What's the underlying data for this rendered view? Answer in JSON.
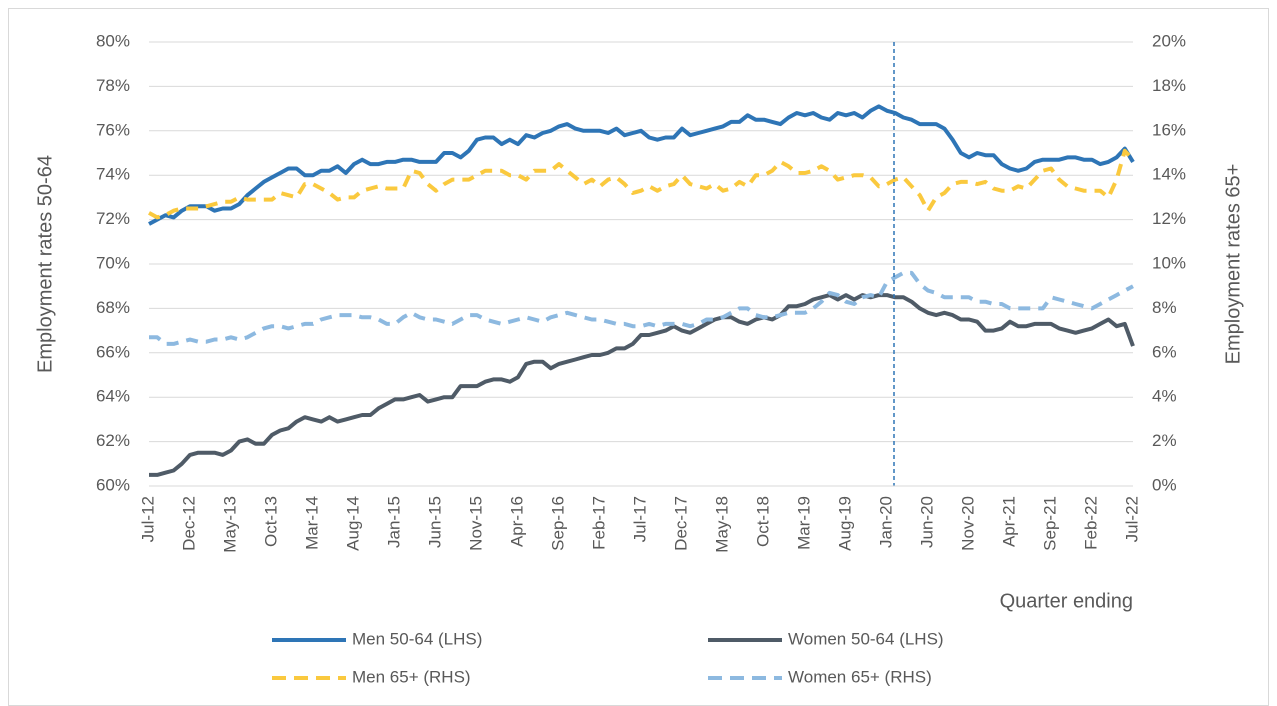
{
  "chart_data": {
    "type": "line",
    "ylabel": "Employment rates 50-64",
    "y2label": "Employment rates 65+",
    "xlabel": "Quarter ending",
    "categories": [
      "Jul-12",
      null,
      null,
      null,
      null,
      "Dec-12",
      null,
      null,
      null,
      null,
      "May-13",
      null,
      null,
      null,
      null,
      "Oct-13",
      null,
      null,
      null,
      null,
      "Mar-14",
      null,
      null,
      null,
      null,
      "Aug-14",
      null,
      null,
      null,
      null,
      "Jan-15",
      null,
      null,
      null,
      null,
      "Jun-15",
      null,
      null,
      null,
      null,
      "Nov-15",
      null,
      null,
      null,
      null,
      "Apr-16",
      null,
      null,
      null,
      null,
      "Sep-16",
      null,
      null,
      null,
      null,
      "Feb-17",
      null,
      null,
      null,
      null,
      "Jul-17",
      null,
      null,
      null,
      null,
      "Dec-17",
      null,
      null,
      null,
      null,
      "May-18",
      null,
      null,
      null,
      null,
      "Oct-18",
      null,
      null,
      null,
      null,
      "Mar-19",
      null,
      null,
      null,
      null,
      "Aug-19",
      null,
      null,
      null,
      null,
      "Jan-20",
      null,
      null,
      null,
      null,
      "Jun-20",
      null,
      null,
      null,
      null,
      "Nov-20",
      null,
      null,
      null,
      null,
      "Apr-21",
      null,
      null,
      null,
      null,
      "Sep-21",
      null,
      null,
      null,
      null,
      "Feb-22",
      null,
      null,
      null,
      null,
      "Jul-22"
    ],
    "ylim": [
      60,
      80
    ],
    "yticks": [
      {
        "value": 60,
        "label": "60%"
      },
      {
        "value": 62,
        "label": "62%"
      },
      {
        "value": 64,
        "label": "64%"
      },
      {
        "value": 66,
        "label": "66%"
      },
      {
        "value": 68,
        "label": "68%"
      },
      {
        "value": 70,
        "label": "70%"
      },
      {
        "value": 72,
        "label": "72%"
      },
      {
        "value": 74,
        "label": "74%"
      },
      {
        "value": 76,
        "label": "76%"
      },
      {
        "value": 78,
        "label": "78%"
      },
      {
        "value": 80,
        "label": "80%"
      }
    ],
    "y2lim": [
      0,
      20
    ],
    "y2ticks": [
      {
        "value": 0,
        "label": "0%"
      },
      {
        "value": 2,
        "label": "2%"
      },
      {
        "value": 4,
        "label": "4%"
      },
      {
        "value": 6,
        "label": "6%"
      },
      {
        "value": 8,
        "label": "8%"
      },
      {
        "value": 10,
        "label": "10%"
      },
      {
        "value": 12,
        "label": "12%"
      },
      {
        "value": 14,
        "label": "14%"
      },
      {
        "value": 16,
        "label": "16%"
      },
      {
        "value": 18,
        "label": "18%"
      },
      {
        "value": 20,
        "label": "20%"
      }
    ],
    "grid": true,
    "series": [
      {
        "name": "Men 50-64 (LHS)",
        "color": "#2e75b6",
        "dashed": false,
        "axis": "y",
        "values": [
          71.8,
          72.0,
          72.2,
          72.1,
          72.4,
          72.6,
          72.6,
          72.6,
          72.4,
          72.5,
          72.5,
          72.7,
          73.1,
          73.4,
          73.7,
          73.9,
          74.1,
          74.3,
          74.3,
          74.0,
          74.0,
          74.2,
          74.2,
          74.4,
          74.1,
          74.5,
          74.7,
          74.5,
          74.5,
          74.6,
          74.6,
          74.7,
          74.7,
          74.6,
          74.6,
          74.6,
          75.0,
          75.0,
          74.8,
          75.1,
          75.6,
          75.7,
          75.7,
          75.4,
          75.6,
          75.4,
          75.8,
          75.7,
          75.9,
          76.0,
          76.2,
          76.3,
          76.1,
          76.0,
          76.0,
          76.0,
          75.9,
          76.1,
          75.8,
          75.9,
          76.0,
          75.7,
          75.6,
          75.7,
          75.7,
          76.1,
          75.8,
          75.9,
          76.0,
          76.1,
          76.2,
          76.4,
          76.4,
          76.7,
          76.5,
          76.5,
          76.4,
          76.3,
          76.6,
          76.8,
          76.7,
          76.8,
          76.6,
          76.5,
          76.8,
          76.7,
          76.8,
          76.6,
          76.9,
          77.1,
          76.9,
          76.8,
          76.6,
          76.5,
          76.3,
          76.3,
          76.3,
          76.1,
          75.6,
          75.0,
          74.8,
          75.0,
          74.9,
          74.9,
          74.5,
          74.3,
          74.2,
          74.3,
          74.6,
          74.7,
          74.7,
          74.7,
          74.8,
          74.8,
          74.7,
          74.7,
          74.5,
          74.6,
          74.8,
          75.2,
          74.6
        ]
      },
      {
        "name": "Women 50-64 (LHS)",
        "color": "#4f5b67",
        "dashed": false,
        "axis": "y",
        "values": [
          60.5,
          60.5,
          60.6,
          60.7,
          61.0,
          61.4,
          61.5,
          61.5,
          61.5,
          61.4,
          61.6,
          62.0,
          62.1,
          61.9,
          61.9,
          62.3,
          62.5,
          62.6,
          62.9,
          63.1,
          63.0,
          62.9,
          63.1,
          62.9,
          63.0,
          63.1,
          63.2,
          63.2,
          63.5,
          63.7,
          63.9,
          63.9,
          64.0,
          64.1,
          63.8,
          63.9,
          64.0,
          64.0,
          64.5,
          64.5,
          64.5,
          64.7,
          64.8,
          64.8,
          64.7,
          64.9,
          65.5,
          65.6,
          65.6,
          65.3,
          65.5,
          65.6,
          65.7,
          65.8,
          65.9,
          65.9,
          66.0,
          66.2,
          66.2,
          66.4,
          66.8,
          66.8,
          66.9,
          67.0,
          67.2,
          67.0,
          66.9,
          67.1,
          67.3,
          67.5,
          67.6,
          67.6,
          67.4,
          67.3,
          67.5,
          67.6,
          67.5,
          67.7,
          68.1,
          68.1,
          68.2,
          68.4,
          68.5,
          68.6,
          68.4,
          68.6,
          68.4,
          68.6,
          68.5,
          68.6,
          68.6,
          68.5,
          68.5,
          68.3,
          68.0,
          67.8,
          67.7,
          67.8,
          67.7,
          67.5,
          67.5,
          67.4,
          67.0,
          67.0,
          67.1,
          67.4,
          67.2,
          67.2,
          67.3,
          67.3,
          67.3,
          67.1,
          67.0,
          66.9,
          67.0,
          67.1,
          67.3,
          67.5,
          67.2,
          67.3,
          66.3
        ]
      },
      {
        "name": "Men 65+ (RHS)",
        "color": "#fac93e",
        "dashed": true,
        "axis": "y2",
        "values": [
          12.3,
          12.1,
          12.2,
          12.4,
          12.5,
          12.5,
          12.5,
          12.6,
          12.7,
          12.8,
          12.8,
          13.0,
          12.9,
          12.9,
          12.9,
          12.9,
          13.2,
          13.1,
          13.0,
          13.6,
          13.6,
          13.4,
          13.2,
          12.9,
          13.0,
          13.0,
          13.3,
          13.4,
          13.5,
          13.4,
          13.4,
          13.4,
          14.2,
          14.1,
          13.6,
          13.3,
          13.6,
          13.8,
          13.8,
          13.8,
          14.0,
          14.2,
          14.2,
          14.2,
          14.0,
          14.0,
          13.8,
          14.2,
          14.2,
          14.2,
          14.5,
          14.2,
          13.9,
          13.6,
          13.8,
          13.5,
          13.8,
          13.9,
          13.6,
          13.2,
          13.3,
          13.5,
          13.3,
          13.5,
          13.6,
          14.0,
          13.6,
          13.5,
          13.4,
          13.6,
          13.3,
          13.4,
          13.7,
          13.5,
          14.0,
          14.0,
          14.2,
          14.6,
          14.4,
          14.1,
          14.1,
          14.2,
          14.4,
          14.2,
          13.8,
          13.9,
          14.0,
          14.0,
          13.9,
          13.5,
          13.6,
          13.8,
          13.9,
          13.5,
          13.1,
          12.4,
          13.0,
          13.2,
          13.6,
          13.7,
          13.7,
          13.6,
          13.7,
          13.4,
          13.3,
          13.3,
          13.5,
          13.4,
          13.8,
          14.2,
          14.3,
          13.8,
          13.5,
          13.4,
          13.3,
          13.3,
          13.3,
          13.0,
          13.8,
          15.1,
          14.7
        ]
      },
      {
        "name": "Women 65+ (RHS)",
        "color": "#8db9e0",
        "dashed": true,
        "axis": "y2",
        "values": [
          6.7,
          6.7,
          6.4,
          6.4,
          6.5,
          6.6,
          6.5,
          6.5,
          6.6,
          6.6,
          6.7,
          6.6,
          6.7,
          6.9,
          7.1,
          7.2,
          7.2,
          7.1,
          7.2,
          7.3,
          7.3,
          7.5,
          7.6,
          7.7,
          7.7,
          7.7,
          7.6,
          7.6,
          7.5,
          7.3,
          7.3,
          7.6,
          7.8,
          7.6,
          7.5,
          7.5,
          7.4,
          7.3,
          7.5,
          7.7,
          7.7,
          7.5,
          7.4,
          7.3,
          7.4,
          7.5,
          7.6,
          7.5,
          7.4,
          7.6,
          7.7,
          7.8,
          7.7,
          7.6,
          7.5,
          7.5,
          7.4,
          7.3,
          7.3,
          7.2,
          7.2,
          7.3,
          7.2,
          7.3,
          7.3,
          7.3,
          7.2,
          7.3,
          7.5,
          7.5,
          7.6,
          7.8,
          8.0,
          8.0,
          7.7,
          7.6,
          7.6,
          7.7,
          7.8,
          7.8,
          7.8,
          8.0,
          8.3,
          8.7,
          8.6,
          8.3,
          8.2,
          8.5,
          8.6,
          8.5,
          9.2,
          9.4,
          9.6,
          9.6,
          9.1,
          8.8,
          8.7,
          8.5,
          8.5,
          8.5,
          8.5,
          8.3,
          8.3,
          8.2,
          8.2,
          8.0,
          8.0,
          8.0,
          8.0,
          8.0,
          8.5,
          8.4,
          8.3,
          8.2,
          8.1,
          8.0,
          8.2,
          8.4,
          8.6,
          8.8,
          9.0
        ]
      }
    ]
  }
}
